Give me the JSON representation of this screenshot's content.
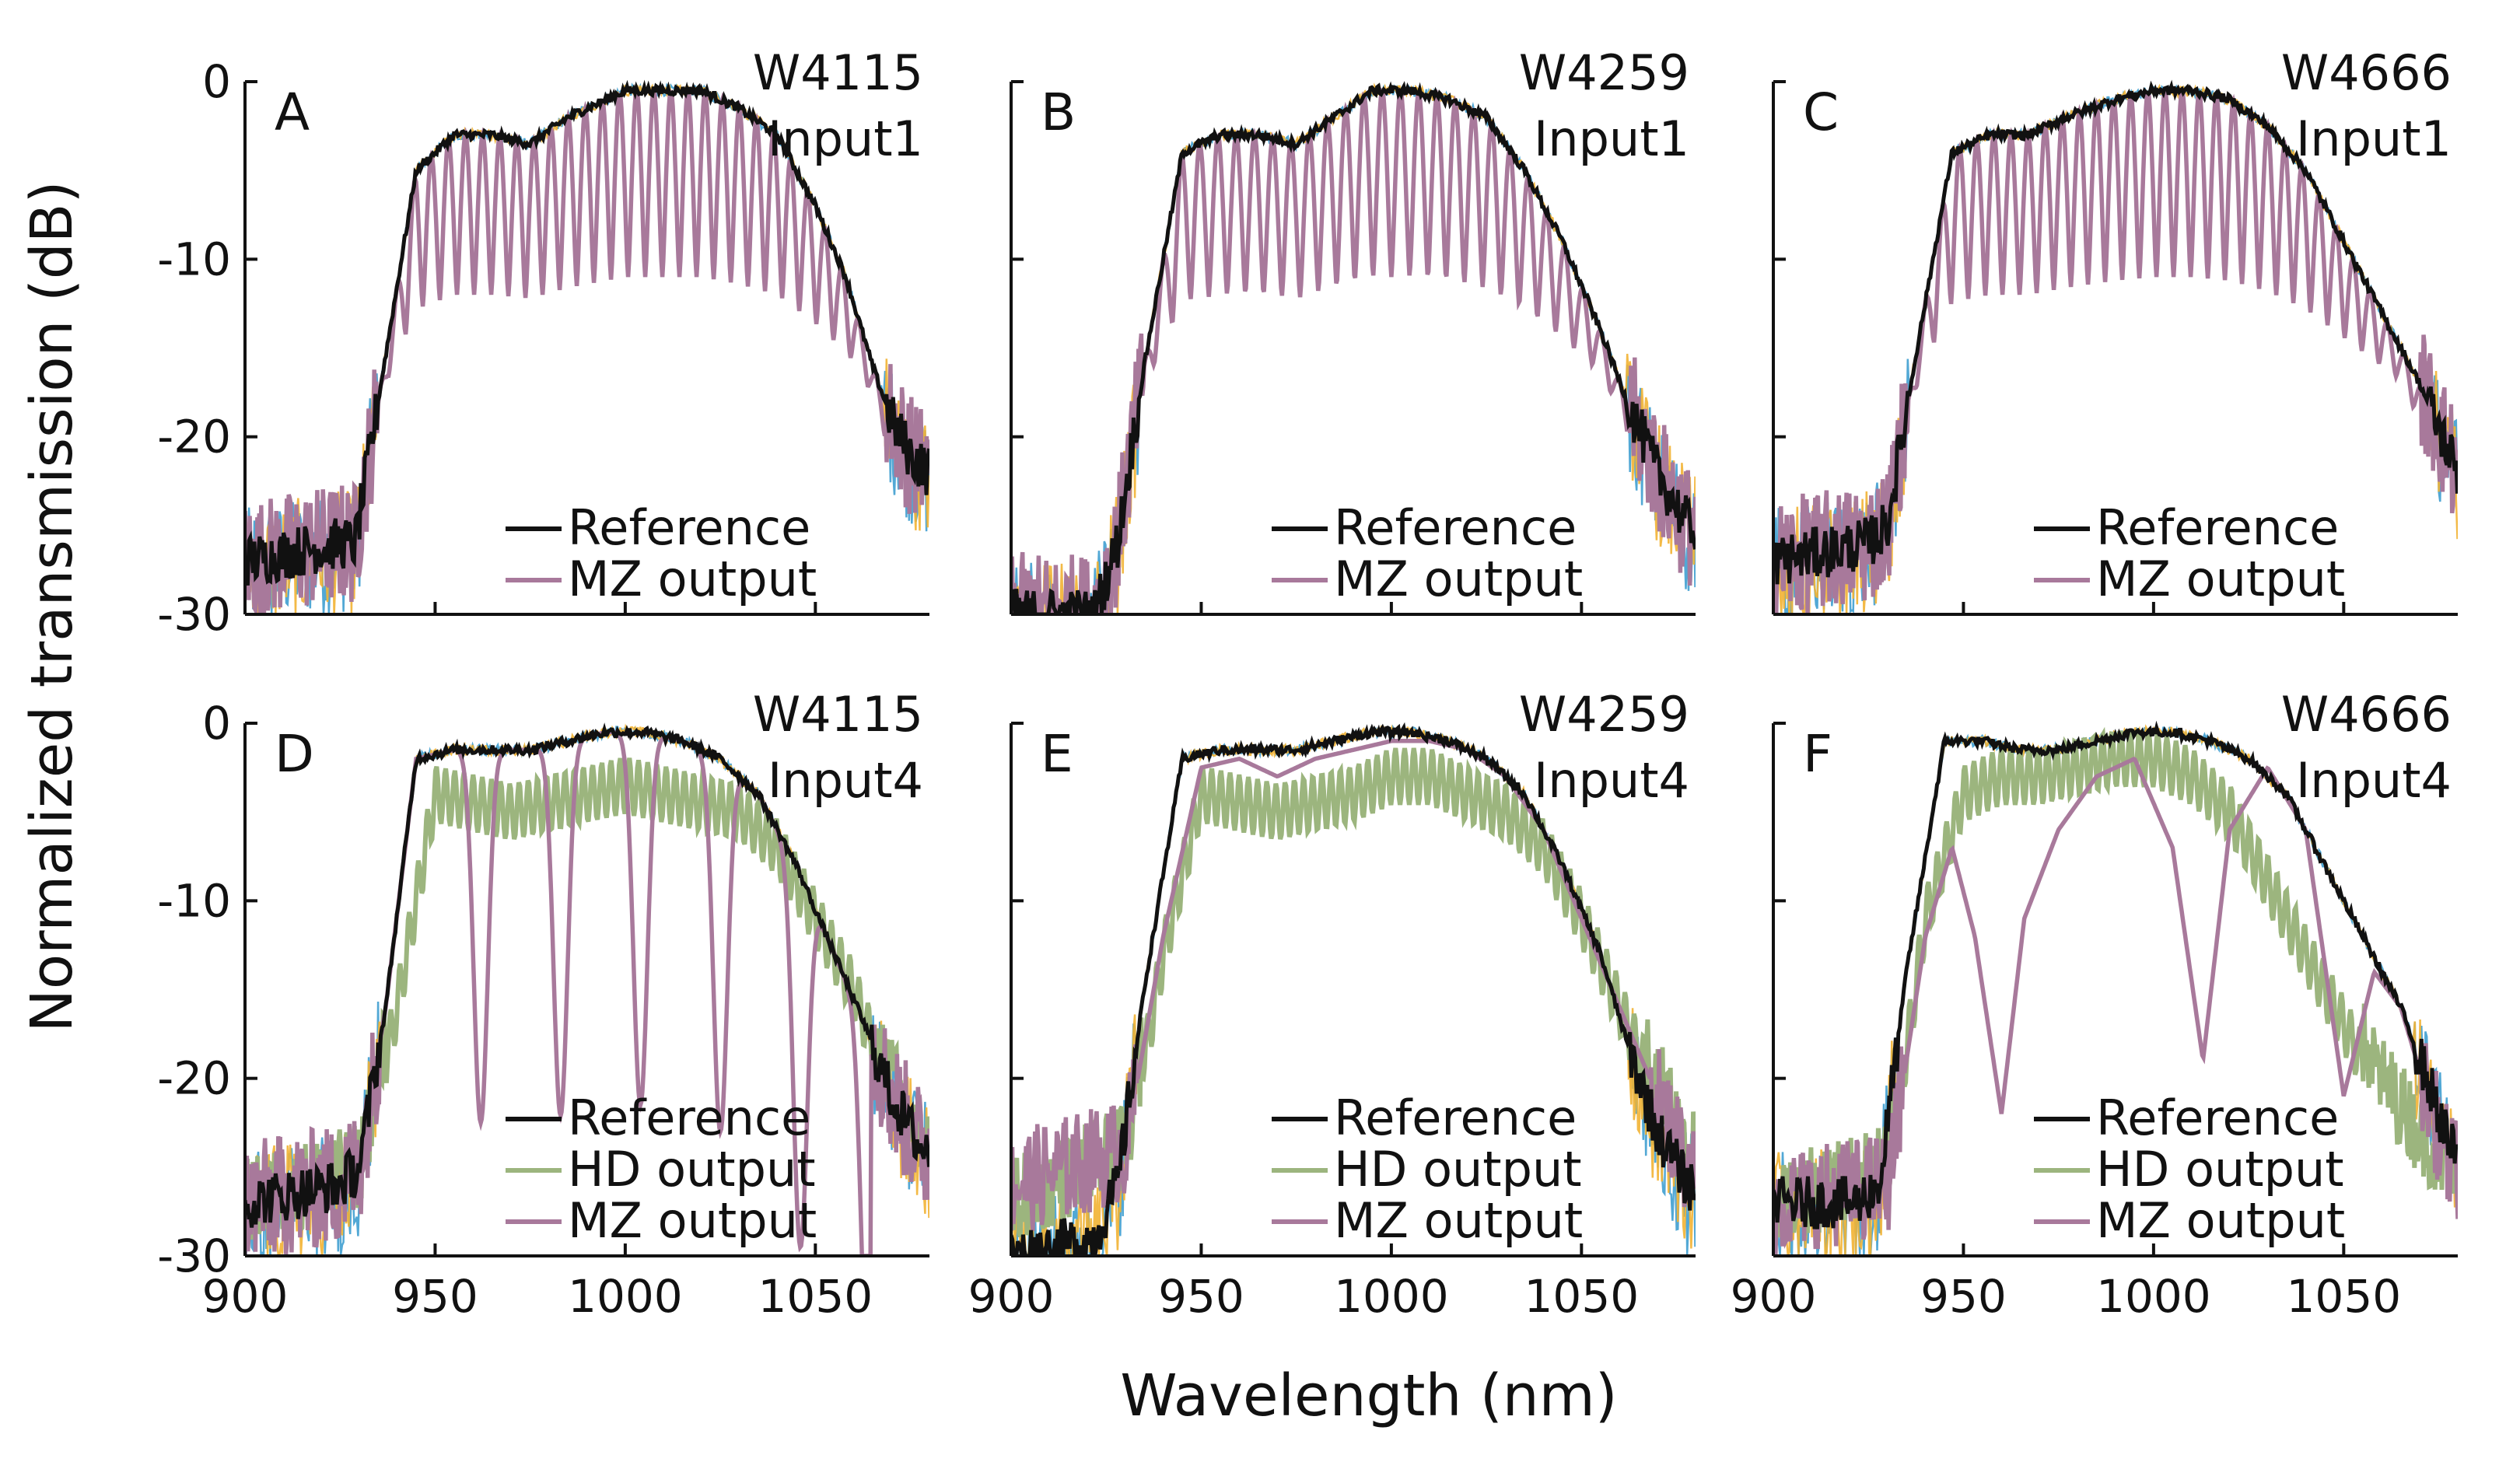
{
  "figure": {
    "ylabel": "Normalized transmission (dB)",
    "xlabel": "Wavelength (nm)"
  },
  "colors": {
    "reference": "#111111",
    "hd": "#9cb57e",
    "mz": "#a8799b",
    "noise_blue": "#3f9fd0",
    "noise_orange": "#f2b233",
    "axis": "#111111"
  },
  "chart_data": [
    {
      "type": "line",
      "panel": "A",
      "title": "W4115",
      "subtitle": "Input1",
      "xlim": [
        900,
        1080
      ],
      "ylim": [
        -30,
        0
      ],
      "xticks": [],
      "yticks": [
        0,
        -10,
        -20,
        -30
      ],
      "legend": [
        "Reference",
        "MZ output"
      ],
      "series": [
        {
          "name": "Reference",
          "x": [
            900,
            925,
            929,
            935,
            945,
            955,
            965,
            975,
            985,
            1000,
            1010,
            1020,
            1030,
            1040,
            1050,
            1058,
            1065,
            1070,
            1075,
            1080
          ],
          "values": [
            -27,
            -26,
            -26,
            -18,
            -5,
            -3,
            -3,
            -3.5,
            -2,
            -0.5,
            -0.5,
            -0.5,
            -1.5,
            -3,
            -7,
            -11,
            -16,
            -19,
            -21,
            -22
          ]
        },
        {
          "name": "MZ output",
          "envelope_top": "Reference",
          "envelope_bottom_db": -12,
          "fringe_period_nm": 4.5,
          "x_range": [
            935,
            1070
          ]
        }
      ]
    },
    {
      "type": "line",
      "panel": "B",
      "title": "W4259",
      "subtitle": "Input1",
      "xlim": [
        900,
        1080
      ],
      "ylim": [
        -30,
        0
      ],
      "xticks": [],
      "yticks": [],
      "legend": [
        "Reference",
        "MZ output"
      ],
      "series": [
        {
          "name": "Reference",
          "x": [
            900,
            922,
            928,
            935,
            945,
            955,
            965,
            975,
            985,
            995,
            1005,
            1015,
            1025,
            1035,
            1045,
            1055,
            1062,
            1070,
            1078
          ],
          "values": [
            -30,
            -30,
            -26,
            -16,
            -4,
            -3,
            -3,
            -3.5,
            -2,
            -0.5,
            -0.5,
            -1,
            -2,
            -5,
            -9,
            -14,
            -18,
            -22,
            -25
          ]
        },
        {
          "name": "MZ output",
          "envelope_top": "Reference",
          "envelope_bottom_db": -12,
          "fringe_period_nm": 4.8,
          "x_range": [
            935,
            1070
          ]
        }
      ]
    },
    {
      "type": "line",
      "panel": "C",
      "title": "W4666",
      "subtitle": "Input1",
      "xlim": [
        900,
        1080
      ],
      "ylim": [
        -30,
        0
      ],
      "xticks": [],
      "yticks": [],
      "legend": [
        "Reference",
        "MZ output"
      ],
      "series": [
        {
          "name": "Reference",
          "x": [
            900,
            925,
            930,
            937,
            947,
            957,
            967,
            977,
            990,
            1000,
            1010,
            1020,
            1030,
            1040,
            1050,
            1060,
            1070,
            1080
          ],
          "values": [
            -27,
            -26,
            -25,
            -16,
            -4,
            -3,
            -3,
            -2,
            -1,
            -0.5,
            -0.5,
            -1,
            -2.5,
            -5,
            -9,
            -13,
            -17,
            -22
          ]
        },
        {
          "name": "MZ output",
          "envelope_top": "Reference",
          "envelope_bottom_db": -12,
          "fringe_period_nm": 4.5,
          "x_range": [
            935,
            1070
          ]
        }
      ]
    },
    {
      "type": "line",
      "panel": "D",
      "title": "W4115",
      "subtitle": "Input4",
      "xlim": [
        900,
        1080
      ],
      "ylim": [
        -30,
        0
      ],
      "xticks": [
        900,
        950,
        1000,
        1050
      ],
      "yticks": [
        0,
        -10,
        -20,
        -30
      ],
      "legend": [
        "Reference",
        "HD output",
        "MZ output"
      ],
      "series": [
        {
          "name": "Reference",
          "x": [
            900,
            925,
            930,
            937,
            945,
            955,
            965,
            975,
            985,
            995,
            1005,
            1015,
            1025,
            1035,
            1045,
            1055,
            1063,
            1070,
            1078
          ],
          "values": [
            -27,
            -26,
            -25,
            -16,
            -2,
            -1.5,
            -1.5,
            -1.5,
            -1,
            -0.5,
            -0.5,
            -1,
            -2,
            -4,
            -8,
            -13,
            -17,
            -21,
            -24
          ]
        },
        {
          "name": "HD output",
          "x": [
            900,
            930,
            940,
            950,
            960,
            970,
            980,
            990,
            1000,
            1010,
            1020,
            1030,
            1040,
            1050,
            1060,
            1070,
            1078
          ],
          "values": [
            -27,
            -25,
            -15,
            -3,
            -3.5,
            -4,
            -3.5,
            -3,
            -2.5,
            -3,
            -3.5,
            -4,
            -6,
            -10,
            -14,
            -20,
            -24
          ]
        },
        {
          "name": "MZ output",
          "dips_nm": [
            962,
            983,
            1004,
            1025,
            1046,
            1064
          ],
          "dip_depth_db": -21,
          "x_range": [
            935,
            1075
          ]
        }
      ]
    },
    {
      "type": "line",
      "panel": "E",
      "title": "W4259",
      "subtitle": "Input4",
      "xlim": [
        900,
        1080
      ],
      "ylim": [
        -30,
        0
      ],
      "xticks": [
        900,
        950,
        1000,
        1050
      ],
      "yticks": [],
      "legend": [
        "Reference",
        "HD output",
        "MZ output"
      ],
      "series": [
        {
          "name": "Reference",
          "x": [
            900,
            922,
            928,
            935,
            945,
            955,
            965,
            975,
            985,
            995,
            1005,
            1015,
            1025,
            1035,
            1045,
            1055,
            1062,
            1070,
            1078
          ],
          "values": [
            -30,
            -29,
            -26,
            -15,
            -2,
            -1.5,
            -1.5,
            -1.5,
            -1,
            -0.5,
            -0.5,
            -1,
            -2,
            -4,
            -8,
            -13,
            -18,
            -23,
            -26
          ]
        },
        {
          "name": "HD output",
          "x": [
            900,
            930,
            940,
            950,
            960,
            970,
            980,
            990,
            1000,
            1010,
            1020,
            1030,
            1040,
            1050,
            1060,
            1070,
            1078
          ],
          "values": [
            -27,
            -24,
            -12,
            -3,
            -3.5,
            -4,
            -3.5,
            -3,
            -2,
            -2,
            -3,
            -4,
            -6,
            -10,
            -15,
            -20,
            -24
          ]
        },
        {
          "name": "MZ output",
          "x": [
            900,
            930,
            940,
            950,
            960,
            970,
            980,
            990,
            1000,
            1010,
            1020,
            1030,
            1040,
            1050,
            1060,
            1070,
            1078
          ],
          "values": [
            -26,
            -24,
            -12,
            -2.5,
            -2,
            -3,
            -2,
            -1.5,
            -1,
            -1,
            -1.5,
            -3,
            -6,
            -11,
            -16,
            -21,
            -25
          ]
        }
      ]
    },
    {
      "type": "line",
      "panel": "F",
      "title": "W4666",
      "subtitle": "Input4",
      "xlim": [
        900,
        1080
      ],
      "ylim": [
        -30,
        0
      ],
      "xticks": [
        900,
        950,
        1000,
        1050
      ],
      "yticks": [],
      "legend": [
        "Reference",
        "HD output",
        "MZ output"
      ],
      "series": [
        {
          "name": "Reference",
          "x": [
            900,
            922,
            928,
            935,
            945,
            955,
            965,
            975,
            985,
            995,
            1005,
            1015,
            1025,
            1035,
            1045,
            1055,
            1065,
            1072,
            1078
          ],
          "values": [
            -27,
            -27,
            -26,
            -14,
            -1,
            -1,
            -1.5,
            -1.5,
            -1,
            -0.5,
            -0.5,
            -1,
            -2,
            -4,
            -8,
            -12,
            -16,
            -20,
            -24
          ]
        },
        {
          "name": "HD output",
          "x": [
            900,
            930,
            940,
            950,
            960,
            970,
            980,
            990,
            1000,
            1010,
            1020,
            1030,
            1040,
            1050,
            1060,
            1070,
            1078
          ],
          "values": [
            -27,
            -25,
            -10,
            -3,
            -2,
            -2,
            -1.5,
            -1,
            -1,
            -2,
            -4,
            -8,
            -12,
            -16,
            -20,
            -23,
            -25
          ]
        },
        {
          "name": "MZ output",
          "x": [
            900,
            930,
            940,
            947,
            953,
            960,
            966,
            975,
            985,
            995,
            1005,
            1013,
            1020,
            1030,
            1040,
            1050,
            1058,
            1065,
            1072,
            1078
          ],
          "values": [
            -27,
            -26,
            -12,
            -7,
            -12,
            -22,
            -11,
            -6,
            -3,
            -2,
            -7,
            -19,
            -6,
            -2.5,
            -6,
            -21,
            -14,
            -16,
            -21,
            -25
          ]
        }
      ]
    }
  ]
}
